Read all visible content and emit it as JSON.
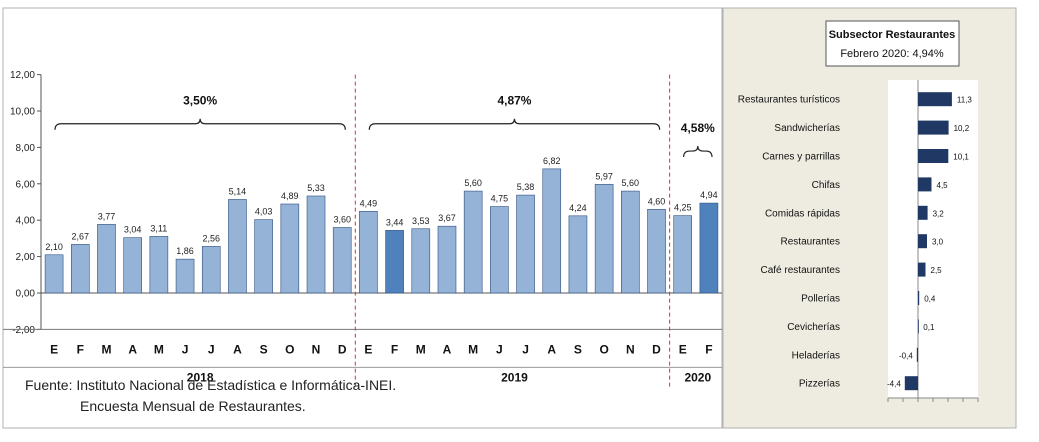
{
  "chart_data": [
    {
      "type": "bar",
      "categories": [
        "E",
        "F",
        "M",
        "A",
        "M",
        "J",
        "J",
        "A",
        "S",
        "O",
        "N",
        "D",
        "E",
        "F",
        "M",
        "A",
        "M",
        "J",
        "J",
        "A",
        "S",
        "O",
        "N",
        "D",
        "E",
        "F"
      ],
      "values": [
        2.1,
        2.67,
        3.77,
        3.04,
        3.11,
        1.86,
        2.56,
        5.14,
        4.03,
        4.89,
        5.33,
        3.6,
        4.49,
        3.44,
        3.53,
        3.67,
        5.6,
        4.75,
        5.38,
        6.82,
        4.24,
        5.97,
        5.6,
        4.6,
        4.25,
        4.94
      ],
      "value_labels": [
        "2,10",
        "2,67",
        "3,77",
        "3,04",
        "3,11",
        "1,86",
        "2,56",
        "5,14",
        "4,03",
        "4,89",
        "5,33",
        "3,60",
        "4,49",
        "3,44",
        "3,53",
        "3,67",
        "5,60",
        "4,75",
        "5,38",
        "6,82",
        "4,24",
        "5,97",
        "5,60",
        "4,60",
        "4,25",
        "4,94"
      ],
      "highlighted": [
        13,
        25
      ],
      "ylim": [
        -2,
        12
      ],
      "yticks": [
        -2,
        0,
        2,
        4,
        6,
        8,
        10,
        12
      ],
      "ytick_labels": [
        "-2,00",
        "0,00",
        "2,00",
        "4,00",
        "6,00",
        "8,00",
        "10,00",
        "12,00"
      ],
      "years": [
        {
          "label": "2018",
          "start": 0,
          "end": 11,
          "average": "3,50%"
        },
        {
          "label": "2019",
          "start": 12,
          "end": 23,
          "average": "4,87%"
        },
        {
          "label": "2020",
          "start": 24,
          "end": 25,
          "average": "4,58%"
        }
      ],
      "grid": false,
      "colors": {
        "bar": "#95B3D7",
        "bar_highlight": "#4F81BD",
        "bar_edge": "#2F4F7F",
        "separator": "#E03030"
      }
    },
    {
      "type": "bar",
      "orientation": "horizontal",
      "title": "Subsector Restaurantes",
      "subtitle": "Febrero 2020: 4,94%",
      "categories": [
        "Restaurantes turísticos",
        "Sandwicherías",
        "Carnes y parrillas",
        "Chifas",
        "Comidas rápidas",
        "Restaurantes",
        "Café restaurantes",
        "Pollerías",
        "Cevicherías",
        "Heladerías",
        "Pizzerías"
      ],
      "values": [
        11.3,
        10.2,
        10.1,
        4.5,
        3.2,
        3.0,
        2.5,
        0.4,
        0.1,
        -0.4,
        -4.4
      ],
      "value_labels": [
        "11,3",
        "10,2",
        "10,1",
        "4,5",
        "3,2",
        "3,0",
        "2,5",
        "0,4",
        "0,1",
        "-0,4",
        "-4,4"
      ],
      "xlim": [
        -10,
        20
      ],
      "colors": {
        "bar": "#1F3864",
        "panel": "#EEECE1",
        "title_box": "#FFFFFF"
      }
    }
  ],
  "source": {
    "line1": "Fuente: Instituto Nacional de Estadística e Informática-INEI.",
    "line2": "Encuesta Mensual de  Restaurantes."
  }
}
